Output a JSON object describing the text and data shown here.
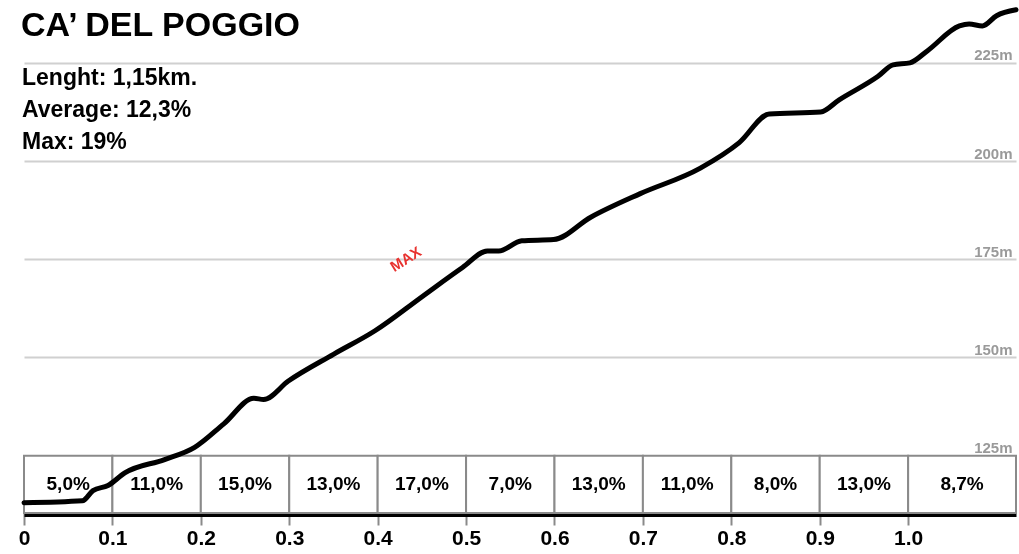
{
  "chart_data": {
    "type": "line",
    "title": "CA’ DEL POGGIO",
    "annotations": [
      "Lenght: 1,15km.",
      "Average: 12,3%",
      "Max: 19%",
      {
        "text": "MAX",
        "x": 0.459,
        "y": 167.4
      }
    ],
    "x": [
      0,
      0.066,
      0.078,
      0.095,
      0.114,
      0.159,
      0.193,
      0.226,
      0.26,
      0.271,
      0.299,
      0.35,
      0.397,
      0.451,
      0.496,
      0.524,
      0.537,
      0.563,
      0.599,
      0.641,
      0.697,
      0.765,
      0.809,
      0.843,
      0.901,
      0.922,
      0.966,
      0.983,
      1.002,
      1.022,
      1.058,
      1.069,
      1.084,
      1.1,
      1.122
    ],
    "series": [
      {
        "color": "#000000",
        "values": [
          113.0,
          113.5,
          116.1,
          117.4,
          120.6,
          124.0,
          127.1,
          133.1,
          139.6,
          139.3,
          144.0,
          150.8,
          156.8,
          165.6,
          172.9,
          177.1,
          177.1,
          179.7,
          180.0,
          185.7,
          191.7,
          198.2,
          204.7,
          212.0,
          212.5,
          215.6,
          221.6,
          224.5,
          225.0,
          228.1,
          234.4,
          234.9,
          234.4,
          237.0,
          238.5
        ]
      }
    ],
    "xlim": [
      0,
      1.122
    ],
    "xticks": [
      0,
      0.1,
      0.2,
      0.3,
      0.4,
      0.5,
      0.6,
      0.7,
      0.8,
      0.9,
      {
        "value": 1,
        "label": "1.0"
      }
    ],
    "ylim": [
      110.4,
      241
    ],
    "yticks": [
      {
        "value": 125,
        "label": "125m"
      },
      {
        "value": 150,
        "label": "150m"
      },
      {
        "value": 175,
        "label": "175m"
      },
      {
        "value": 200,
        "label": "200m"
      },
      {
        "value": 225,
        "label": "225m"
      }
    ],
    "bands": [
      {
        "axis": "x",
        "from": 0,
        "to": 0.1,
        "label": "5,0%"
      },
      {
        "axis": "x",
        "from": 0.1,
        "to": 0.2,
        "label": "11,0%"
      },
      {
        "axis": "x",
        "from": 0.2,
        "to": 0.3,
        "label": "15,0%"
      },
      {
        "axis": "x",
        "from": 0.3,
        "to": 0.4,
        "label": "13,0%"
      },
      {
        "axis": "x",
        "from": 0.4,
        "to": 0.5,
        "label": "17,0%"
      },
      {
        "axis": "x",
        "from": 0.5,
        "to": 0.6,
        "label": "7,0%"
      },
      {
        "axis": "x",
        "from": 0.6,
        "to": 0.7,
        "label": "13,0%"
      },
      {
        "axis": "x",
        "from": 0.7,
        "to": 0.8,
        "label": "11,0%"
      },
      {
        "axis": "x",
        "from": 0.8,
        "to": 0.9,
        "label": "8,0%"
      },
      {
        "axis": "x",
        "from": 0.9,
        "to": 1.0,
        "label": "13,0%"
      },
      {
        "axis": "x",
        "from": 1.0,
        "to": 1.122,
        "label": "8,7%"
      }
    ],
    "grid": "y",
    "marker": "none",
    "line_style": "solid"
  }
}
